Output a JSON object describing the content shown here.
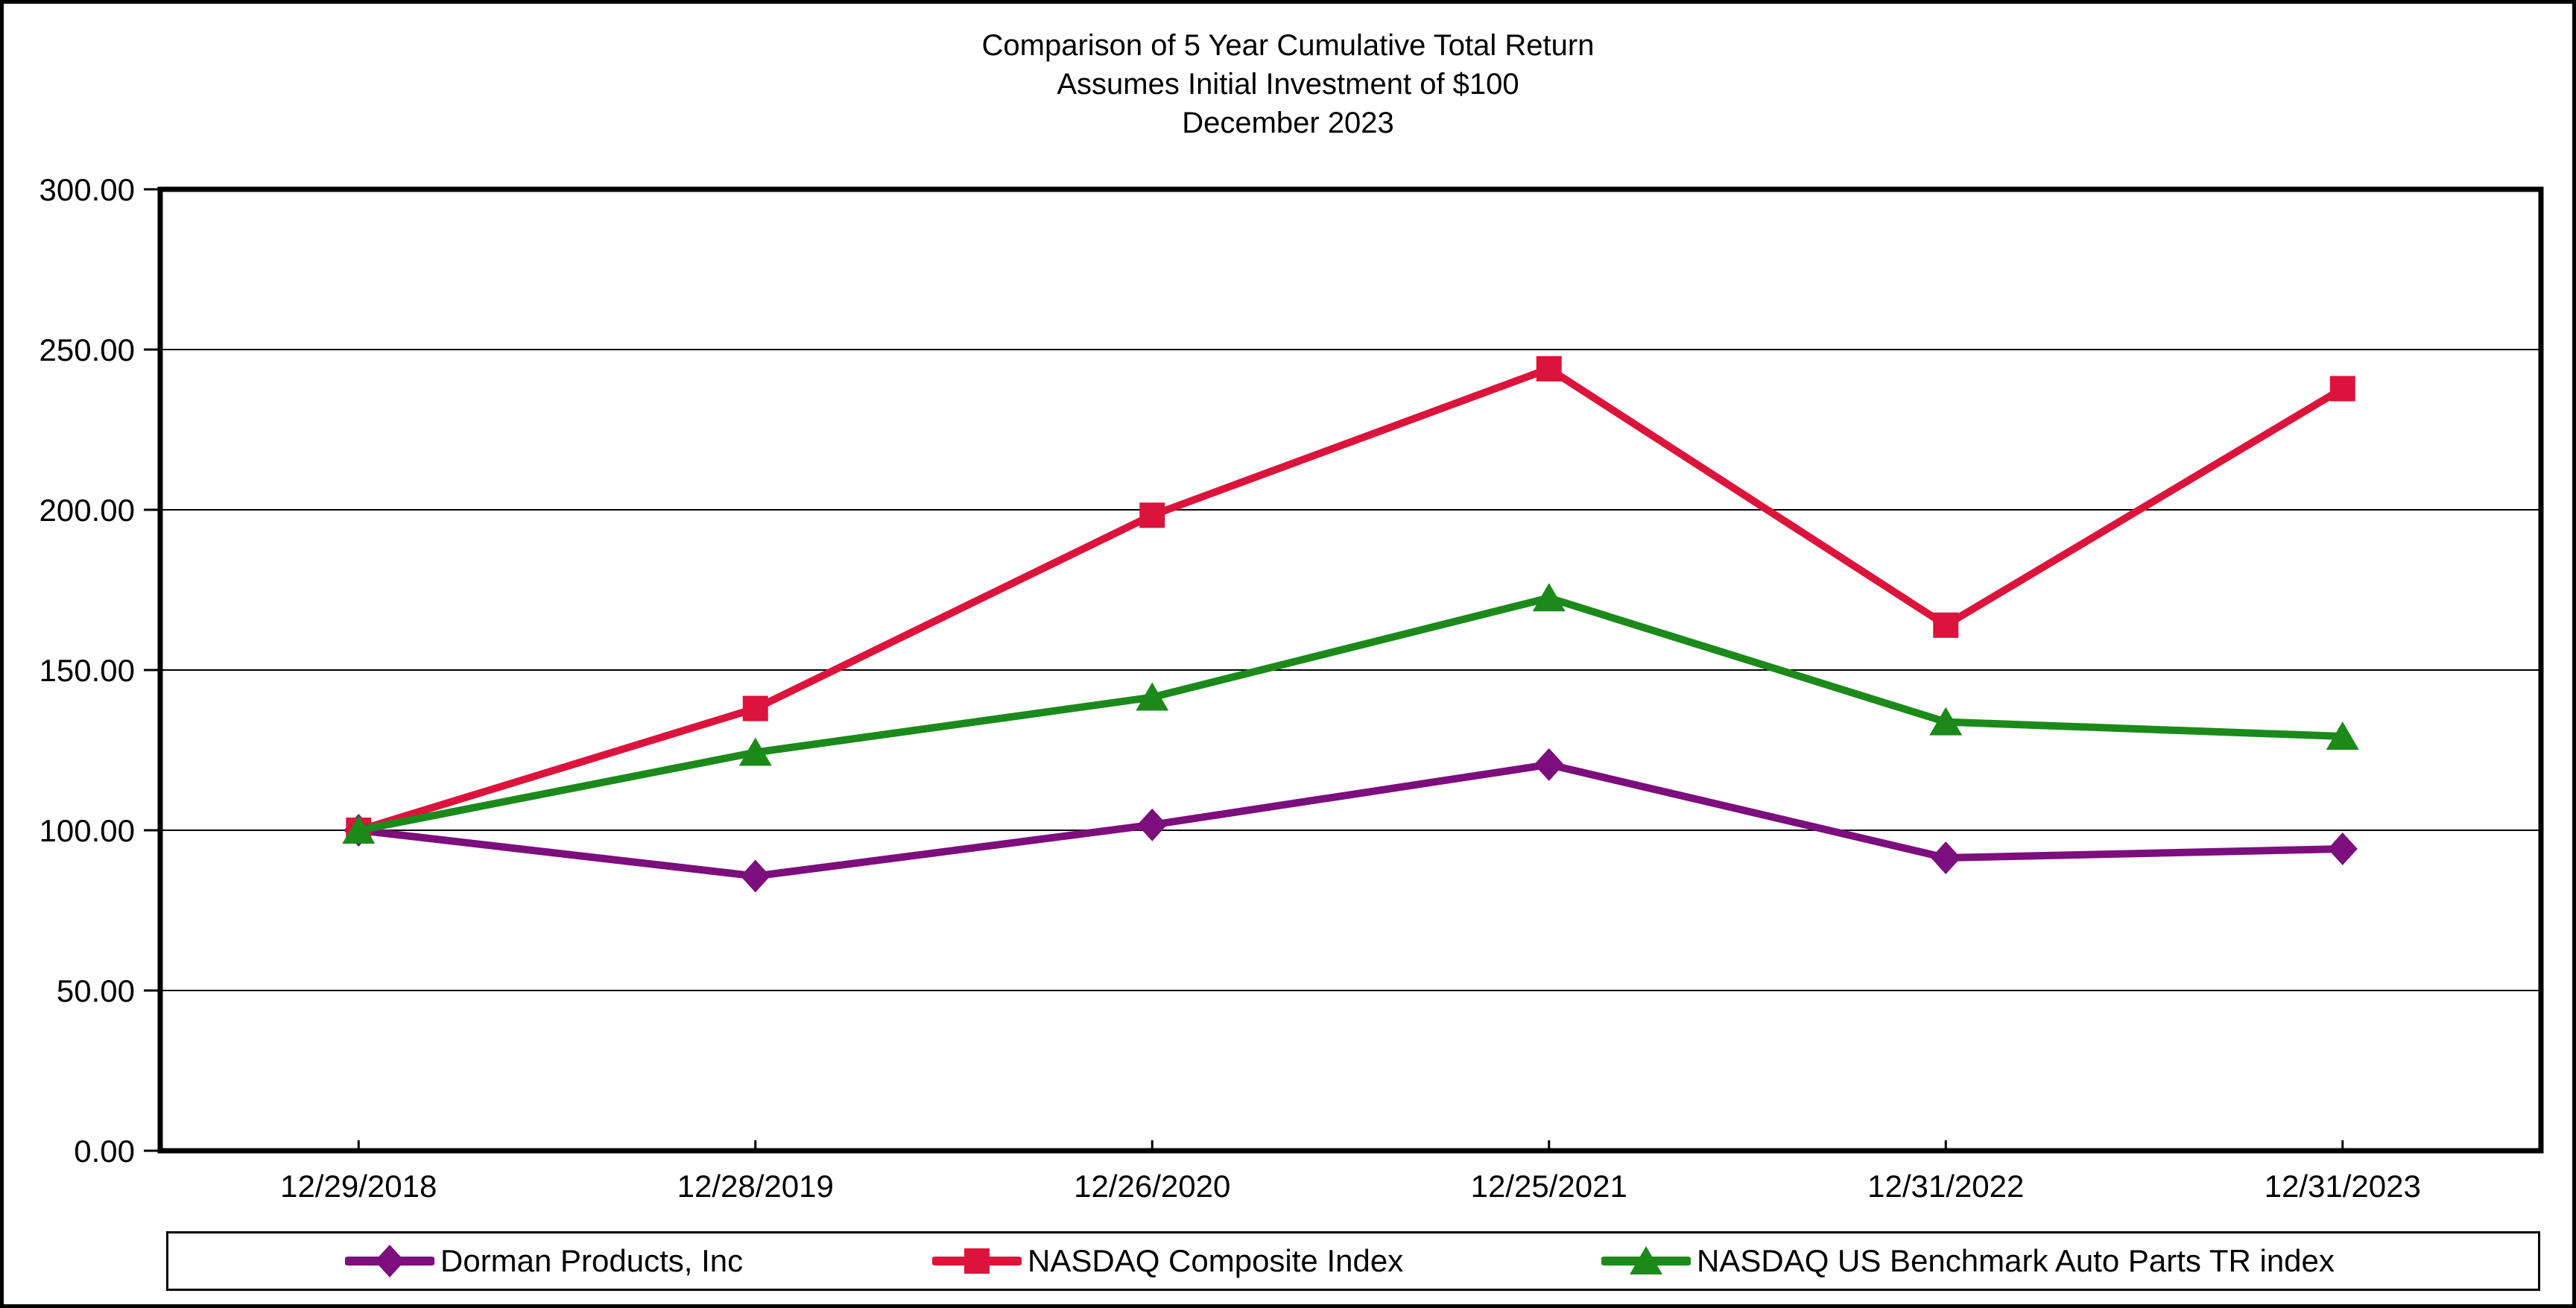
{
  "title": {
    "line1": "Comparison of 5 Year Cumulative Total Return",
    "line2": "Assumes Initial Investment of $100",
    "line3": "December 2023"
  },
  "chart_data": {
    "type": "line",
    "title": "Comparison of 5 Year Cumulative Total Return",
    "subtitle": "Assumes Initial Investment of $100",
    "period_label": "December 2023",
    "categories": [
      "12/29/2018",
      "12/28/2019",
      "12/26/2020",
      "12/25/2021",
      "12/31/2022",
      "12/31/2023"
    ],
    "series": [
      {
        "name": "Dorman Products, Inc",
        "marker": "diamond",
        "color": "#7D0E7D",
        "values": [
          100.0,
          85.7,
          101.7,
          120.5,
          91.4,
          94.2
        ]
      },
      {
        "name": "NASDAQ Composite Index",
        "marker": "square",
        "color": "#DC143C",
        "values": [
          100.0,
          138.0,
          198.3,
          244.0,
          164.0,
          237.8
        ]
      },
      {
        "name": "NASDAQ US Benchmark Auto Parts TR index",
        "marker": "triangle",
        "color": "#1B8A1B",
        "values": [
          100.0,
          124.3,
          141.5,
          172.5,
          133.8,
          129.3
        ]
      }
    ],
    "ylim": [
      0,
      300
    ],
    "ytick_step": 50,
    "ytick_decimals": 2,
    "xlabel": "",
    "ylabel": "",
    "grid": "horizontal",
    "legend_position": "bottom",
    "axis_color": "#000000",
    "background_color": "#ffffff"
  }
}
